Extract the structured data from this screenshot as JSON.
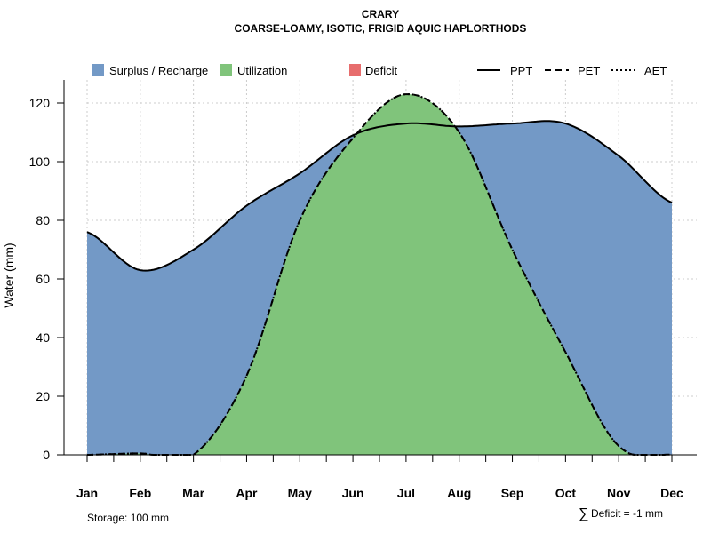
{
  "chart_data": {
    "type": "area",
    "title": "CRARY",
    "subtitle": "COARSE-LOAMY, ISOTIC, FRIGID AQUIC HAPLORTHODS",
    "xlabel": "",
    "ylabel": "Water (mm)",
    "ylim": [
      0,
      125
    ],
    "yticks": [
      0,
      20,
      40,
      60,
      80,
      100,
      120
    ],
    "categories": [
      "Jan",
      "Feb",
      "Mar",
      "Apr",
      "May",
      "Jun",
      "Jul",
      "Aug",
      "Sep",
      "Oct",
      "Nov",
      "Dec"
    ],
    "grid": true,
    "series": [
      {
        "name": "PPT",
        "style": "solid",
        "values": [
          76,
          63,
          70,
          85,
          96,
          109,
          113,
          112,
          113,
          113,
          102,
          86
        ]
      },
      {
        "name": "PET",
        "style": "dashed",
        "values": [
          0,
          0.5,
          0,
          27,
          80,
          108,
          123,
          110,
          70,
          35,
          3,
          0
        ]
      },
      {
        "name": "AET",
        "style": "dotted",
        "values": [
          0,
          0.5,
          0,
          27,
          80,
          108,
          123,
          110,
          70,
          35,
          3,
          0
        ]
      }
    ],
    "areas": [
      {
        "name": "Surplus / Recharge",
        "color": "#7399c6"
      },
      {
        "name": "Utilization",
        "color": "#80c47b"
      },
      {
        "name": "Deficit",
        "color": "#e76d6d"
      }
    ],
    "legend_position": "top",
    "annotations": {
      "storage": "Storage: 100 mm",
      "deficit": "Deficit = -1 mm",
      "deficit_symbol": "∑"
    }
  }
}
